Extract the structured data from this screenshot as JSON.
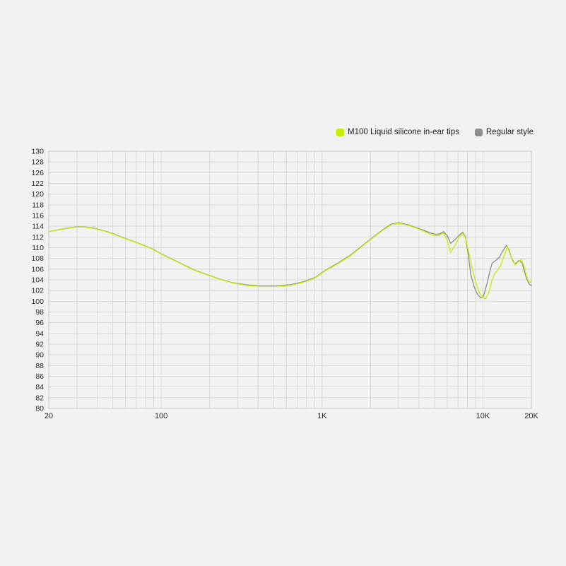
{
  "page": {
    "background_color": "#f2f2f2",
    "gridline_color": "#d9d9d9",
    "frame_color": "#c8c8c8",
    "tick_text_color": "#2a2a2a"
  },
  "legend": {
    "items": [
      {
        "label": "M100 Liquid silicone in-ear tips",
        "color": "#c3ef00"
      },
      {
        "label": "Regular style",
        "color": "#8e8e8e"
      }
    ]
  },
  "chart_data": {
    "type": "line",
    "title": "",
    "xlabel": "",
    "ylabel": "",
    "x_scale": "log",
    "xlim": [
      20,
      20000
    ],
    "grid": true,
    "legend_position": "top-right",
    "y_tick_labels": [
      "130",
      "128",
      "126",
      "122",
      "120",
      "118",
      "116",
      "114",
      "112",
      "110",
      "108",
      "106",
      "104",
      "102",
      "100",
      "98",
      "96",
      "94",
      "92",
      "90",
      "88",
      "86",
      "84",
      "82",
      "80"
    ],
    "x_gridlines_hz": [
      20,
      30,
      40,
      50,
      60,
      70,
      80,
      90,
      100,
      200,
      300,
      400,
      500,
      600,
      700,
      800,
      900,
      1000,
      2000,
      3000,
      4000,
      5000,
      6000,
      7000,
      8000,
      9000,
      10000,
      20000
    ],
    "x_tick_labels": [
      {
        "hz": 20,
        "label": "20"
      },
      {
        "hz": 100,
        "label": "100"
      },
      {
        "hz": 1000,
        "label": "1K"
      },
      {
        "hz": 10000,
        "label": "10K"
      },
      {
        "hz": 20000,
        "label": "20K"
      }
    ],
    "series": [
      {
        "name": "Regular style",
        "color": "#8e8e8e",
        "points": [
          [
            20,
            113.0
          ],
          [
            22,
            113.25
          ],
          [
            25,
            113.55
          ],
          [
            29,
            113.85
          ],
          [
            33,
            113.9
          ],
          [
            38,
            113.65
          ],
          [
            44,
            113.15
          ],
          [
            50,
            112.65
          ],
          [
            57,
            111.95
          ],
          [
            65,
            111.35
          ],
          [
            75,
            110.65
          ],
          [
            87,
            109.85
          ],
          [
            100,
            108.85
          ],
          [
            115,
            107.95
          ],
          [
            135,
            106.95
          ],
          [
            160,
            105.85
          ],
          [
            190,
            105.05
          ],
          [
            230,
            104.15
          ],
          [
            280,
            103.45
          ],
          [
            340,
            103.05
          ],
          [
            420,
            102.85
          ],
          [
            520,
            102.85
          ],
          [
            640,
            103.1
          ],
          [
            760,
            103.6
          ],
          [
            900,
            104.4
          ],
          [
            1050,
            105.8
          ],
          [
            1250,
            107.1
          ],
          [
            1500,
            108.6
          ],
          [
            1800,
            110.5
          ],
          [
            2100,
            112.1
          ],
          [
            2400,
            113.4
          ],
          [
            2700,
            114.4
          ],
          [
            3000,
            114.65
          ],
          [
            3400,
            114.3
          ],
          [
            3800,
            113.8
          ],
          [
            4200,
            113.35
          ],
          [
            4700,
            112.75
          ],
          [
            5100,
            112.5
          ],
          [
            5400,
            112.6
          ],
          [
            5700,
            113.0
          ],
          [
            6000,
            112.2
          ],
          [
            6300,
            110.8
          ],
          [
            6700,
            111.5
          ],
          [
            7100,
            112.3
          ],
          [
            7500,
            112.9
          ],
          [
            7800,
            111.9
          ],
          [
            8100,
            108.8
          ],
          [
            8400,
            105.0
          ],
          [
            8800,
            102.8
          ],
          [
            9200,
            101.4
          ],
          [
            9700,
            100.6
          ],
          [
            10100,
            101.0
          ],
          [
            10600,
            103.3
          ],
          [
            11000,
            105.4
          ],
          [
            11400,
            107.1
          ],
          [
            12000,
            107.6
          ],
          [
            12700,
            108.3
          ],
          [
            13300,
            109.4
          ],
          [
            14000,
            110.45
          ],
          [
            14500,
            109.7
          ],
          [
            15100,
            108.0
          ],
          [
            15800,
            106.9
          ],
          [
            16700,
            107.6
          ],
          [
            17500,
            107.2
          ],
          [
            17900,
            106.1
          ],
          [
            18600,
            104.4
          ],
          [
            19300,
            103.3
          ],
          [
            19700,
            103.0
          ],
          [
            20000,
            102.95
          ]
        ]
      },
      {
        "name": "M100 Liquid silicone in-ear tips",
        "color": "#c3ef00",
        "points": [
          [
            20,
            113.0
          ],
          [
            22,
            113.2
          ],
          [
            25,
            113.5
          ],
          [
            29,
            113.8
          ],
          [
            33,
            113.85
          ],
          [
            38,
            113.6
          ],
          [
            44,
            113.1
          ],
          [
            50,
            112.6
          ],
          [
            57,
            111.9
          ],
          [
            65,
            111.3
          ],
          [
            75,
            110.6
          ],
          [
            87,
            109.8
          ],
          [
            100,
            108.8
          ],
          [
            115,
            107.9
          ],
          [
            135,
            106.9
          ],
          [
            160,
            105.8
          ],
          [
            190,
            105.0
          ],
          [
            230,
            104.1
          ],
          [
            280,
            103.4
          ],
          [
            340,
            102.95
          ],
          [
            420,
            102.75
          ],
          [
            520,
            102.75
          ],
          [
            640,
            103.0
          ],
          [
            760,
            103.5
          ],
          [
            900,
            104.3
          ],
          [
            1050,
            105.7
          ],
          [
            1250,
            107.0
          ],
          [
            1500,
            108.5
          ],
          [
            1800,
            110.4
          ],
          [
            2100,
            112.0
          ],
          [
            2400,
            113.3
          ],
          [
            2700,
            114.3
          ],
          [
            3000,
            114.55
          ],
          [
            3400,
            114.2
          ],
          [
            3800,
            113.7
          ],
          [
            4200,
            113.2
          ],
          [
            4700,
            112.5
          ],
          [
            5100,
            112.2
          ],
          [
            5400,
            112.35
          ],
          [
            5700,
            112.8
          ],
          [
            6000,
            111.3
          ],
          [
            6300,
            109.1
          ],
          [
            6700,
            110.4
          ],
          [
            7100,
            111.9
          ],
          [
            7500,
            112.7
          ],
          [
            7800,
            111.7
          ],
          [
            8100,
            109.6
          ],
          [
            8500,
            106.6
          ],
          [
            9000,
            103.7
          ],
          [
            9500,
            101.6
          ],
          [
            10000,
            100.7
          ],
          [
            10400,
            100.45
          ],
          [
            10900,
            101.7
          ],
          [
            11300,
            103.6
          ],
          [
            11800,
            105.1
          ],
          [
            12400,
            105.9
          ],
          [
            13000,
            106.9
          ],
          [
            13600,
            108.7
          ],
          [
            14200,
            110.2
          ],
          [
            14700,
            108.9
          ],
          [
            15300,
            107.5
          ],
          [
            15900,
            106.8
          ],
          [
            16500,
            107.3
          ],
          [
            17300,
            107.8
          ],
          [
            18000,
            106.6
          ],
          [
            18700,
            104.6
          ],
          [
            19200,
            103.7
          ],
          [
            19600,
            103.5
          ],
          [
            20000,
            103.9
          ]
        ]
      }
    ]
  }
}
